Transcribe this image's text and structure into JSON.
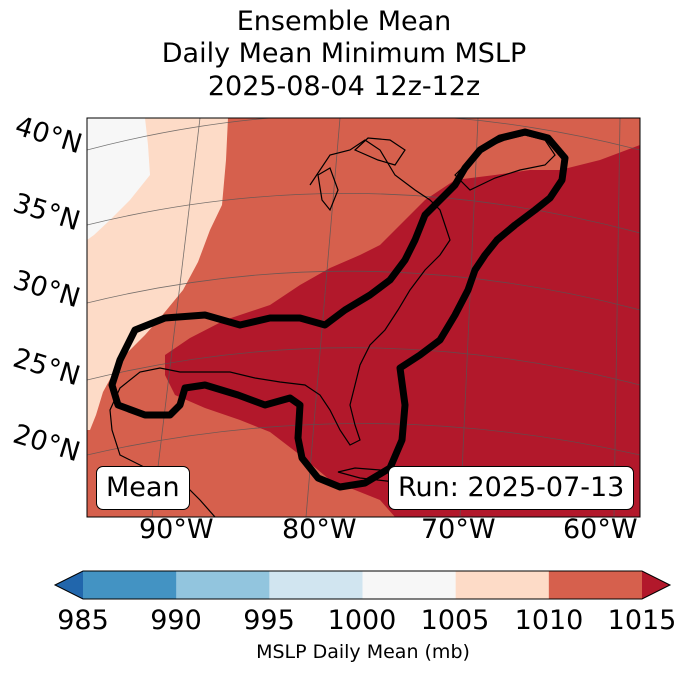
{
  "title": {
    "line1": "Ensemble Mean",
    "line2": "Daily Mean Minimum MSLP",
    "line3": "2025-08-04 12z-12z"
  },
  "map": {
    "lat_labels": [
      "40°N",
      "35°N",
      "30°N",
      "25°N",
      "20°N"
    ],
    "lon_labels": [
      "90°W",
      "80°W",
      "70°W",
      "60°W"
    ],
    "mean_badge": "Mean",
    "run_badge": "Run: 2025-07-13"
  },
  "colorbar": {
    "ticks": [
      "985",
      "990",
      "995",
      "1000",
      "1005",
      "1010",
      "1015"
    ],
    "label": "MSLP Daily Mean (mb)",
    "colors": {
      "under": "#2166ac",
      "985-990": "#4393c3",
      "990-995": "#92c5de",
      "995-1000": "#d1e5f0",
      "1000-1005": "#f7f7f7",
      "1005-1010": "#fddbc7",
      "1010-1015": "#d6604d",
      "over": "#b2182b"
    }
  }
}
